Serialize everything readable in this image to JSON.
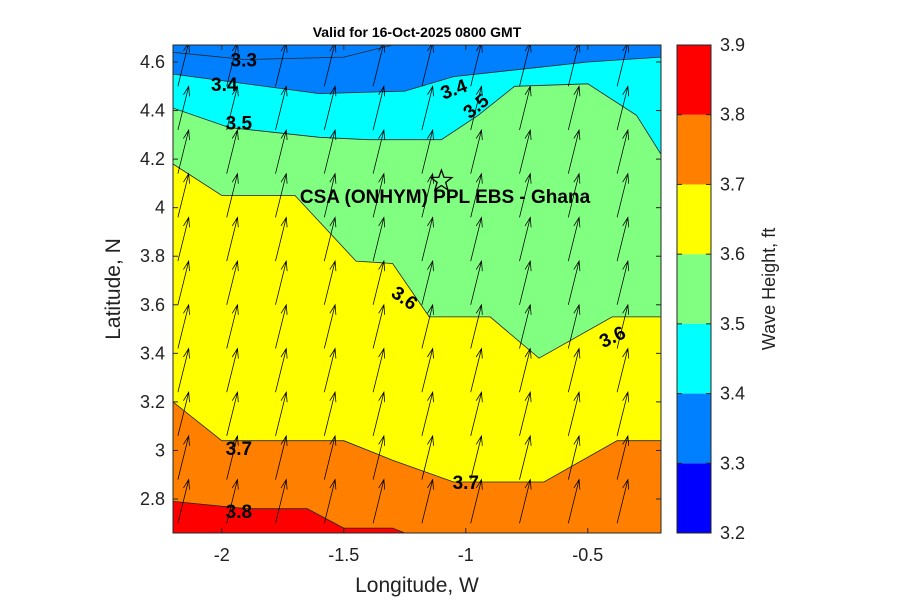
{
  "chart_data": {
    "type": "filled-contour",
    "title": "Valid for 16-Oct-2025 0800 GMT",
    "xlabel": "Longitude, W",
    "ylabel": "Latitude, N",
    "xlim": [
      -2.2,
      -0.2
    ],
    "ylim": [
      2.66,
      4.67
    ],
    "x_ticks": [
      {
        "value": -2,
        "label": "-2"
      },
      {
        "value": -1.5,
        "label": "-1.5"
      },
      {
        "value": -1,
        "label": "-1"
      },
      {
        "value": -0.5,
        "label": "-0.5"
      }
    ],
    "y_ticks": [
      {
        "value": 2.8,
        "label": "2.8"
      },
      {
        "value": 3.0,
        "label": "3"
      },
      {
        "value": 3.2,
        "label": "3.2"
      },
      {
        "value": 3.4,
        "label": "3.4"
      },
      {
        "value": 3.6,
        "label": "3.6"
      },
      {
        "value": 3.8,
        "label": "3.8"
      },
      {
        "value": 4.0,
        "label": "4"
      },
      {
        "value": 4.2,
        "label": "4.2"
      },
      {
        "value": 4.4,
        "label": "4.4"
      },
      {
        "value": 4.6,
        "label": "4.6"
      }
    ],
    "colorbar": {
      "title": "Wave Height, ft",
      "levels": [
        3.2,
        3.3,
        3.4,
        3.5,
        3.6,
        3.7,
        3.8,
        3.9
      ],
      "tick_labels": [
        "3.2",
        "3.3",
        "3.4",
        "3.5",
        "3.6",
        "3.7",
        "3.8",
        "3.9"
      ],
      "colors": [
        "#0000ff",
        "#0080ff",
        "#00ffff",
        "#80ff80",
        "#ffff00",
        "#ff8000",
        "#ff0000"
      ]
    },
    "contours": [
      {
        "level": 3.3,
        "points": [
          [
            -2.2,
            4.64
          ],
          [
            -1.9,
            4.61
          ],
          [
            -1.5,
            4.62
          ],
          [
            -1.3,
            4.67
          ]
        ]
      },
      {
        "level": 3.4,
        "points": [
          [
            -2.2,
            4.55
          ],
          [
            -1.6,
            4.47
          ],
          [
            -1.25,
            4.48
          ],
          [
            -1.05,
            4.54
          ],
          [
            -0.5,
            4.6
          ],
          [
            -0.2,
            4.62
          ]
        ]
      },
      {
        "level": 3.5,
        "points": [
          [
            -2.2,
            4.41
          ],
          [
            -1.97,
            4.33
          ],
          [
            -1.6,
            4.29
          ],
          [
            -1.4,
            4.28
          ],
          [
            -1.1,
            4.28
          ],
          [
            -0.95,
            4.38
          ],
          [
            -0.8,
            4.5
          ],
          [
            -0.5,
            4.51
          ],
          [
            -0.3,
            4.38
          ],
          [
            -0.2,
            4.22
          ]
        ]
      },
      {
        "level": 3.6,
        "points": [
          [
            -2.2,
            4.18
          ],
          [
            -2.0,
            4.05
          ],
          [
            -1.7,
            4.05
          ],
          [
            -1.45,
            3.78
          ],
          [
            -1.3,
            3.77
          ],
          [
            -1.15,
            3.55
          ],
          [
            -0.9,
            3.55
          ],
          [
            -0.7,
            3.38
          ],
          [
            -0.4,
            3.55
          ],
          [
            -0.2,
            3.55
          ]
        ]
      },
      {
        "level": 3.7,
        "points": [
          [
            -2.2,
            3.2
          ],
          [
            -2.0,
            3.04
          ],
          [
            -1.5,
            3.04
          ],
          [
            -1.3,
            2.96
          ],
          [
            -1.05,
            2.87
          ],
          [
            -0.68,
            2.87
          ],
          [
            -0.38,
            3.04
          ],
          [
            -0.2,
            3.04
          ]
        ]
      },
      {
        "level": 3.8,
        "points": [
          [
            -2.2,
            2.79
          ],
          [
            -1.9,
            2.76
          ],
          [
            -1.65,
            2.76
          ],
          [
            -1.5,
            2.68
          ],
          [
            -1.3,
            2.68
          ],
          [
            -1.25,
            2.66
          ]
        ]
      }
    ],
    "contour_labels": [
      {
        "text": "3.3",
        "x": -1.91,
        "y": 4.61,
        "angle": 0
      },
      {
        "text": "3.4",
        "x": -1.99,
        "y": 4.51,
        "angle": 0
      },
      {
        "text": "3.4",
        "x": -1.05,
        "y": 4.49,
        "angle": -20
      },
      {
        "text": "3.5",
        "x": -1.93,
        "y": 4.35,
        "angle": 0
      },
      {
        "text": "3.5",
        "x": -0.96,
        "y": 4.42,
        "angle": -40
      },
      {
        "text": "3.6",
        "x": -1.25,
        "y": 3.63,
        "angle": 35
      },
      {
        "text": "3.6",
        "x": -0.4,
        "y": 3.47,
        "angle": -25
      },
      {
        "text": "3.7",
        "x": -1.93,
        "y": 3.01,
        "angle": 0
      },
      {
        "text": "3.7",
        "x": -1.0,
        "y": 2.87,
        "angle": 0
      },
      {
        "text": "3.8",
        "x": -1.93,
        "y": 2.75,
        "angle": 0
      }
    ],
    "site": {
      "label": "CSA (ONHYM) PPL EBS  - Ghana",
      "x": -1.1,
      "y": 4.11,
      "marker": "star"
    },
    "wind_field": {
      "x": [
        -2.18,
        -1.98,
        -1.78,
        -1.58,
        -1.38,
        -1.18,
        -0.98,
        -0.78,
        -0.58,
        -0.38
      ],
      "y": [
        2.7,
        2.88,
        3.06,
        3.24,
        3.42,
        3.6,
        3.78,
        3.96,
        4.14,
        4.32,
        4.5
      ],
      "direction": "north-north-east"
    }
  }
}
